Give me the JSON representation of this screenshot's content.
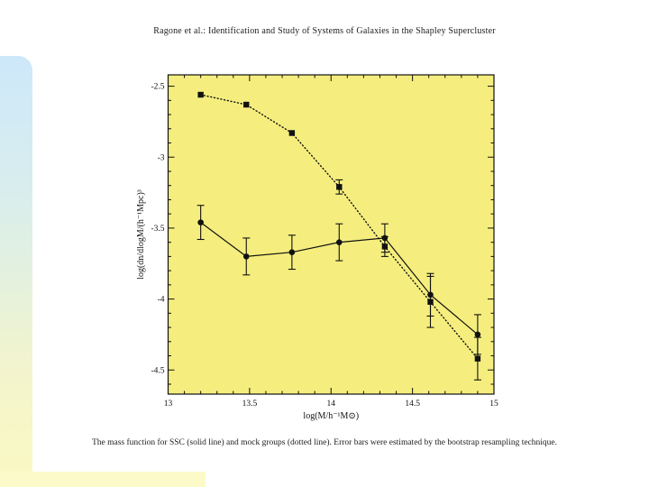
{
  "page": {
    "title": "Ragone et al.: Identification and Study of Systems of Galaxies in the Shapley Supercluster",
    "caption": "The mass function for SSC (solid line) and mock groups (dotted line). Error bars were estimated by the bootstrap resampling technique."
  },
  "decor": {
    "band_top_color": "#cde8fa",
    "band_bottom_color": "#fbf9c2",
    "bottom_strip_color": "#fcfac8"
  },
  "chart_data": {
    "type": "line",
    "title": "",
    "xlabel": "log(M/h⁻¹M⊙)",
    "ylabel": "log(dn/dlogM/(h⁻¹Mpc)³",
    "xlim": [
      13,
      15
    ],
    "ylim": [
      -4.67,
      -2.42
    ],
    "x_major_ticks": [
      13,
      13.5,
      14,
      14.5,
      15
    ],
    "x_tick_labels": [
      "13",
      "13.5",
      "14",
      "14.5",
      "15"
    ],
    "y_major_ticks": [
      -2.5,
      -3,
      -3.5,
      -4,
      -4.5
    ],
    "y_tick_labels": [
      "-2.5",
      "-3",
      "-3.5",
      "-4",
      "-4.5"
    ],
    "minor_tick_step": 0.1,
    "grid": false,
    "legend": "none",
    "background": "#f5ee7e",
    "line_color": "#111111",
    "x": [
      13.2,
      13.48,
      13.76,
      14.05,
      14.33,
      14.61,
      14.9
    ],
    "series": [
      {
        "name": "mock groups",
        "style": "dotted",
        "marker": "square",
        "values": [
          -2.56,
          -2.63,
          -2.83,
          -3.21,
          -3.63,
          -4.02,
          -4.42
        ],
        "yerr": [
          0,
          0,
          0,
          0.05,
          0.07,
          0.18,
          0.15
        ]
      },
      {
        "name": "SSC",
        "style": "solid",
        "marker": "circle",
        "values": [
          -3.46,
          -3.7,
          -3.67,
          -3.6,
          -3.57,
          -3.97,
          -4.25
        ],
        "yerr": [
          0.12,
          0.13,
          0.12,
          0.13,
          0.1,
          0.15,
          0.14
        ]
      }
    ]
  }
}
